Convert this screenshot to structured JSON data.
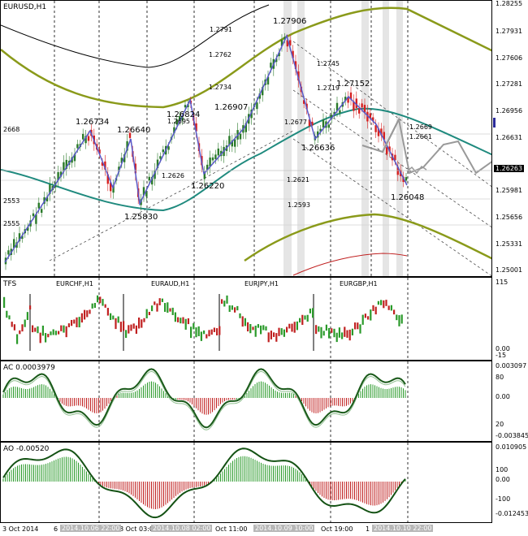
{
  "main": {
    "title": "EURUSD,H1",
    "price_axis": [
      "1.28255",
      "1.27931",
      "1.27606",
      "1.27281",
      "1.26956",
      "1.26631",
      "1.26306",
      "1.25981",
      "1.25656",
      "1.25331",
      "1.25001"
    ],
    "current_price": "1.26263",
    "swing_labels": [
      "1.26734",
      "1.26640",
      "1.25830",
      "1.26824",
      "1.26220",
      "1.26907",
      "1.27906",
      "1.26636",
      "1.27152",
      "1.26048"
    ],
    "level_labels": [
      "1.2791",
      "1.2762",
      "1.2745",
      "1.2734",
      "1.2719",
      "1.2695",
      "1.2677",
      "1.2668",
      "1.2669",
      "1.2661",
      "1.2626",
      "1.2621",
      "1.2593",
      "2668",
      "2553",
      "2555"
    ]
  },
  "tfs": {
    "title": "TFS",
    "pairs": [
      "EURCHF,H1",
      "EURAUD,H1",
      "EURJPY,H1",
      "EURGBP,H1"
    ],
    "axis": [
      "115",
      "0.00",
      "-15"
    ]
  },
  "ac": {
    "title": "AC 0.0003979",
    "axis": [
      "0.003097",
      "80",
      "0.00",
      "20",
      "-0.003845"
    ]
  },
  "ao": {
    "title": "AO -0.00520",
    "axis": [
      "0.010905",
      "100",
      "0.00",
      "-100",
      "-0.012453"
    ]
  },
  "time_axis": {
    "labels": [
      "3 Oct 2014",
      "6",
      "8 Oct 03:00",
      "Oct 11:00",
      "Oct 19:00",
      "1"
    ],
    "highlighted": [
      "2014.10.06 22:00",
      "2014.10.08 02:00",
      "2014.10.09 10:00",
      "2014.10.10 22:00"
    ]
  },
  "colors": {
    "up": "#2a7a2a",
    "down": "#d62020",
    "teal": "#1f8a7e",
    "olive": "#8a9a1a",
    "wave": "#5959c9",
    "ac_line": "#1a5a1a",
    "ao_line": "#145214",
    "bull_bar": "#2a9a2a",
    "bear_bar": "#c02020"
  }
}
